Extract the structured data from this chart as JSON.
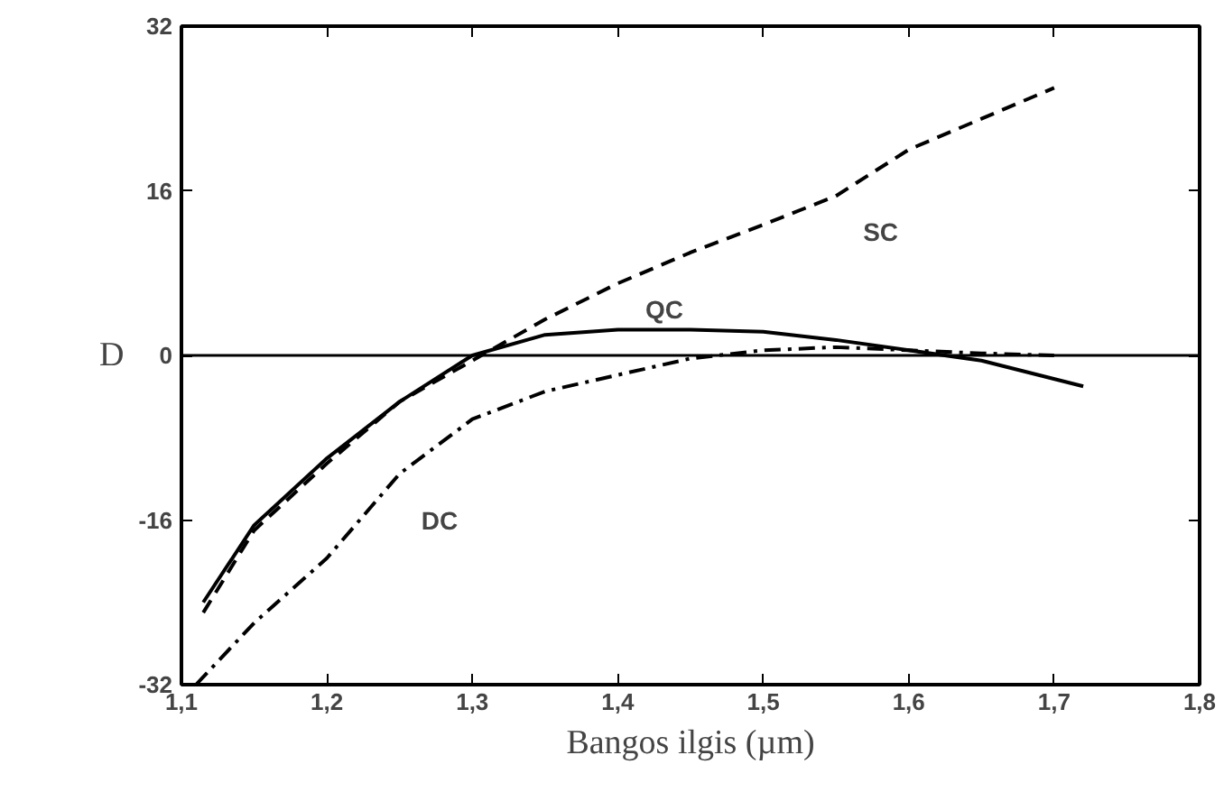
{
  "chart_data": {
    "type": "line",
    "xlabel": "Bangos ilgis (µm)",
    "ylabel": "D",
    "xlim": [
      1.1,
      1.8
    ],
    "ylim": [
      -32,
      32
    ],
    "xticks": [
      {
        "value": 1.1,
        "label": "1,1"
      },
      {
        "value": 1.2,
        "label": "1,2"
      },
      {
        "value": 1.3,
        "label": "1,3"
      },
      {
        "value": 1.4,
        "label": "1,4"
      },
      {
        "value": 1.5,
        "label": "1,5"
      },
      {
        "value": 1.6,
        "label": "1,6"
      },
      {
        "value": 1.7,
        "label": "1,7"
      },
      {
        "value": 1.8,
        "label": "1,8"
      }
    ],
    "yticks": [
      -32,
      -16,
      0,
      16,
      32
    ],
    "grid": false,
    "ref_lines": [
      {
        "axis": "y",
        "value": 0,
        "color": "#000000",
        "line_style": "solid"
      }
    ],
    "series": [
      {
        "name": "SC",
        "color": "#000000",
        "line_style": "dashed",
        "x": [
          1.115,
          1.15,
          1.2,
          1.25,
          1.3,
          1.35,
          1.4,
          1.45,
          1.5,
          1.55,
          1.6,
          1.65,
          1.7
        ],
        "values": [
          -25,
          -17,
          -10.5,
          -4.5,
          -0.5,
          3.5,
          7,
          10,
          12.7,
          15.5,
          20,
          23,
          26
        ]
      },
      {
        "name": "QC",
        "color": "#000000",
        "line_style": "solid",
        "x": [
          1.115,
          1.15,
          1.2,
          1.25,
          1.3,
          1.35,
          1.4,
          1.45,
          1.5,
          1.55,
          1.6,
          1.65,
          1.72
        ],
        "values": [
          -24,
          -16.5,
          -10,
          -4.5,
          0,
          2,
          2.5,
          2.5,
          2.3,
          1.5,
          0.5,
          -0.5,
          -3
        ]
      },
      {
        "name": "DC",
        "color": "#000000",
        "line_style": "dashdot",
        "x": [
          1.11,
          1.15,
          1.2,
          1.25,
          1.3,
          1.35,
          1.4,
          1.45,
          1.5,
          1.55,
          1.6,
          1.65,
          1.7
        ],
        "values": [
          -32,
          -26,
          -19.7,
          -11.5,
          -6.2,
          -3.5,
          -1.9,
          -0.3,
          0.5,
          0.8,
          0.5,
          0.2,
          0
        ]
      }
    ]
  }
}
